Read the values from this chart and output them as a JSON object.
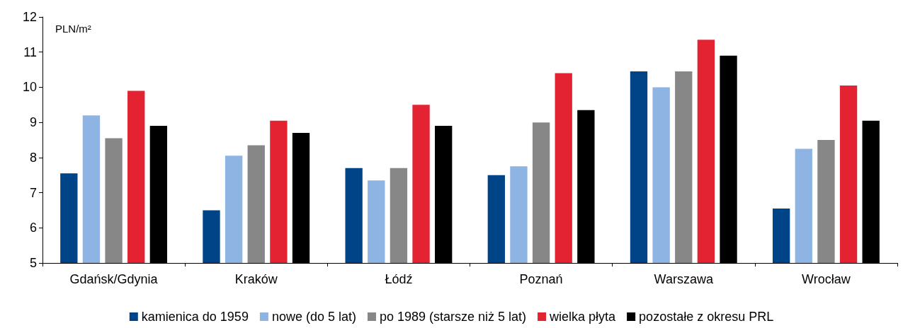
{
  "chart_data": {
    "type": "bar",
    "ylabel": "PLN/m²",
    "categories": [
      "Gdańsk/Gdynia",
      "Kraków",
      "Łódź",
      "Poznań",
      "Warszawa",
      "Wrocław"
    ],
    "series": [
      {
        "name": "kamienica do 1959",
        "color": "#004488",
        "values": [
          7.55,
          6.5,
          7.7,
          7.5,
          10.45,
          6.55
        ]
      },
      {
        "name": "nowe (do 5 lat)",
        "color": "#8db4e2",
        "values": [
          9.2,
          8.05,
          7.35,
          7.75,
          10.0,
          8.25
        ]
      },
      {
        "name": "po 1989 (starsze niż 5 lat)",
        "color": "#878787",
        "values": [
          8.55,
          8.35,
          7.7,
          9.0,
          10.45,
          8.5
        ]
      },
      {
        "name": "wielka płyta",
        "color": "#e32232",
        "values": [
          9.9,
          9.05,
          9.5,
          10.4,
          11.35,
          10.05
        ]
      },
      {
        "name": "pozostałe z okresu PRL",
        "color": "#000000",
        "values": [
          8.9,
          8.7,
          8.9,
          9.35,
          10.9,
          9.05
        ]
      }
    ],
    "ylim": [
      5,
      12
    ],
    "yticks": [
      5,
      6,
      7,
      8,
      9,
      10,
      11,
      12
    ],
    "grid": false,
    "legend": "bottom"
  }
}
